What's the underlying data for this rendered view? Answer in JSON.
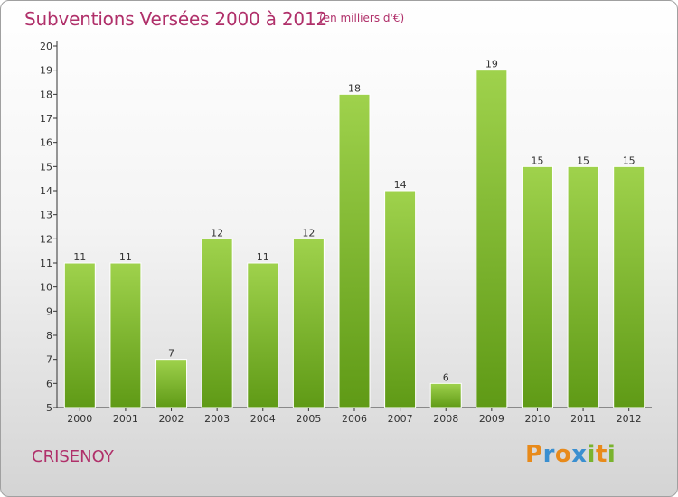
{
  "title": "Subventions Versées 2000 à 2012",
  "subtitle": "(en milliers d'€)",
  "commune": "CRISENOY",
  "logo": {
    "letters": [
      "P",
      "r",
      "o",
      "x",
      "i",
      "t",
      "i"
    ],
    "colors": [
      "#e88a1a",
      "#3a8fd0",
      "#e88a1a",
      "#3a8fd0",
      "#7ab32e",
      "#e88a1a",
      "#7ab32e"
    ]
  },
  "colors": {
    "bar_top": "#9fd24c",
    "bar_bottom": "#5f9a16",
    "title": "#b0306a"
  },
  "chart_data": {
    "type": "bar",
    "categories": [
      "2000",
      "2001",
      "2002",
      "2003",
      "2004",
      "2005",
      "2006",
      "2007",
      "2008",
      "2009",
      "2010",
      "2011",
      "2012"
    ],
    "values": [
      11,
      11,
      7,
      12,
      11,
      12,
      18,
      14,
      6,
      19,
      15,
      15,
      15
    ],
    "ylim": [
      5,
      20
    ],
    "yticks": [
      5,
      6,
      7,
      8,
      9,
      10,
      11,
      12,
      13,
      14,
      15,
      16,
      17,
      18,
      19,
      20
    ],
    "grid": false,
    "title": "Subventions Versées 2000 à 2012",
    "xlabel": "",
    "ylabel": ""
  }
}
